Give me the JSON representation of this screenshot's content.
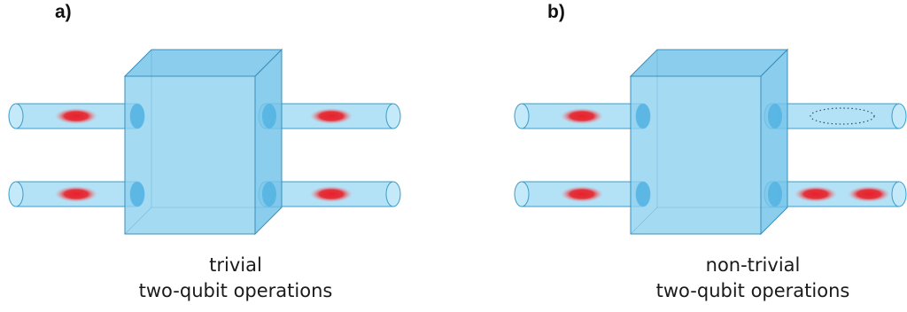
{
  "colors": {
    "pipe": "#a6dcf3",
    "pipe_stroke": "#3c9cc9",
    "cube_front": "#8fd1f0",
    "cube_side": "#77c4ea",
    "cube_stroke": "#3a8fbb",
    "port": "#55b4e2",
    "qubit_core": "#e8202a",
    "qubit_edge": "#f59aa0",
    "empty_qubit_outline": "#2b4f6b"
  },
  "panels": [
    {
      "id": "a",
      "label": "a)",
      "caption_line1": "trivial",
      "caption_line2": "two-qubit operations",
      "outputs": [
        "single",
        "single"
      ]
    },
    {
      "id": "b",
      "label": "b)",
      "caption_line1": "non-trivial",
      "caption_line2": "two-qubit operations",
      "outputs": [
        "empty",
        "double"
      ]
    }
  ]
}
